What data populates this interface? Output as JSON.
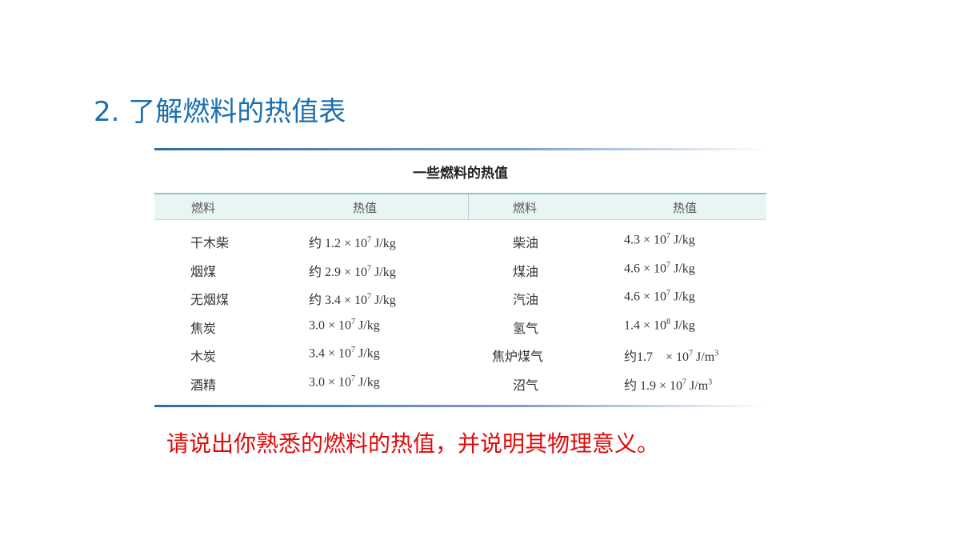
{
  "title": "2. 了解燃料的热值表",
  "table": {
    "caption": "一些燃料的热值",
    "headers": [
      "燃料",
      "热值",
      "燃料",
      "热值"
    ],
    "rows": [
      {
        "f1": "干木柴",
        "v1": {
          "pre": "约 1.2 × 10",
          "exp": "7",
          "unit": " J/kg",
          "uexp": ""
        },
        "f2": "柴油",
        "v2": {
          "pre": "4.3 × 10",
          "exp": "7",
          "unit": " J/kg",
          "uexp": ""
        }
      },
      {
        "f1": "烟煤",
        "v1": {
          "pre": "约 2.9 × 10",
          "exp": "7",
          "unit": " J/kg",
          "uexp": ""
        },
        "f2": "煤油",
        "v2": {
          "pre": "4.6 × 10",
          "exp": "7",
          "unit": " J/kg",
          "uexp": ""
        }
      },
      {
        "f1": "无烟煤",
        "v1": {
          "pre": "约 3.4 × 10",
          "exp": "7",
          "unit": " J/kg",
          "uexp": ""
        },
        "f2": "汽油",
        "v2": {
          "pre": "4.6 × 10",
          "exp": "7",
          "unit": " J/kg",
          "uexp": ""
        }
      },
      {
        "f1": "焦炭",
        "v1": {
          "pre": "3.0 × 10",
          "exp": "7",
          "unit": " J/kg",
          "uexp": ""
        },
        "f2": "氢气",
        "v2": {
          "pre": "1.4 × 10",
          "exp": "8",
          "unit": " J/kg",
          "uexp": ""
        }
      },
      {
        "f1": "木炭",
        "v1": {
          "pre": "3.4 × 10",
          "exp": "7",
          "unit": " J/kg",
          "uexp": ""
        },
        "f2": "焦炉煤气",
        "v2": {
          "pre": "约1.7　× 10",
          "exp": "7",
          "unit": " J/m",
          "uexp": "3"
        }
      },
      {
        "f1": "酒精",
        "v1": {
          "pre": "3.0 × 10",
          "exp": "7",
          "unit": " J/kg",
          "uexp": ""
        },
        "f2": "沼气",
        "v2": {
          "pre": "约 1.9 × 10",
          "exp": "7",
          "unit": " J/m",
          "uexp": "3"
        }
      }
    ]
  },
  "question": "请说出你熟悉的燃料的热值，并说明其物理意义。",
  "colors": {
    "title": "#1a6fb0",
    "question": "#e10a0a",
    "header_bg": "#e8f5f3"
  }
}
